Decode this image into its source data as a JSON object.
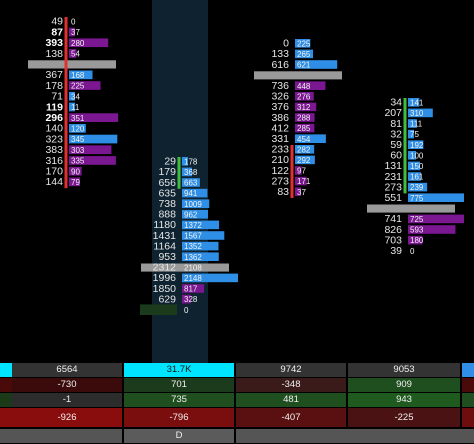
{
  "colors": {
    "background": "#000000",
    "highlight_column": "#0e2230",
    "bid": "#7a1791",
    "ask": "#2f8fe6",
    "poc_bar": "#9a9a9a",
    "buy_bar": "#3fbf3f",
    "sell_bar": "#e03030",
    "cyan": "#00e5ff",
    "pos_green": "#1f4f1f",
    "neg_red": "#6e0d0d",
    "neutral_gray": "#3a3a3a"
  },
  "chart_data": {
    "type": "footprint",
    "bars": [
      {
        "direction": "sell",
        "rows": [
          {
            "bid": "49",
            "ask": "0"
          },
          {
            "bid": "87",
            "ask": "37",
            "bold": true
          },
          {
            "bid": "393",
            "ask": "280",
            "bold": true
          },
          {
            "bid": "138",
            "ask": "54"
          },
          {
            "bid": "",
            "ask": "",
            "poc": true
          },
          {
            "bid": "367",
            "ask": "168"
          },
          {
            "bid": "178",
            "ask": "225"
          },
          {
            "bid": "71",
            "ask": "34"
          },
          {
            "bid": "119",
            "ask": "11",
            "bold": true
          },
          {
            "bid": "296",
            "ask": "351",
            "bold": true
          },
          {
            "bid": "140",
            "ask": "120"
          },
          {
            "bid": "323",
            "ask": "345"
          },
          {
            "bid": "383",
            "ask": "303"
          },
          {
            "bid": "316",
            "ask": "335"
          },
          {
            "bid": "170",
            "ask": "90"
          },
          {
            "bid": "144",
            "ask": "79"
          }
        ]
      },
      {
        "direction": "buy",
        "rows": [
          {
            "bid": "29",
            "ask": "178"
          },
          {
            "bid": "179",
            "ask": "368"
          },
          {
            "bid": "656",
            "ask": "663"
          },
          {
            "bid": "635",
            "ask": "941"
          },
          {
            "bid": "738",
            "ask": "1009"
          },
          {
            "bid": "888",
            "ask": "962"
          },
          {
            "bid": "1180",
            "ask": "1372"
          },
          {
            "bid": "1431",
            "ask": "1567"
          },
          {
            "bid": "1164",
            "ask": "1352"
          },
          {
            "bid": "953",
            "ask": "1362"
          },
          {
            "bid": "2312",
            "ask": "2108",
            "poc": true
          },
          {
            "bid": "1996",
            "ask": "2148"
          },
          {
            "bid": "1850",
            "ask": "817"
          },
          {
            "bid": "629",
            "ask": "328"
          },
          {
            "bid": "57",
            "ask": "0"
          }
        ]
      },
      {
        "direction": "sell",
        "rows": [
          {
            "bid": "0",
            "ask": "225"
          },
          {
            "bid": "133",
            "ask": "265"
          },
          {
            "bid": "616",
            "ask": "621"
          },
          {
            "bid": "",
            "ask": "",
            "poc": true
          },
          {
            "bid": "736",
            "ask": "448"
          },
          {
            "bid": "326",
            "ask": "276"
          },
          {
            "bid": "376",
            "ask": "312"
          },
          {
            "bid": "386",
            "ask": "288"
          },
          {
            "bid": "412",
            "ask": "285"
          },
          {
            "bid": "331",
            "ask": "454"
          },
          {
            "bid": "233",
            "ask": "282"
          },
          {
            "bid": "210",
            "ask": "292"
          },
          {
            "bid": "122",
            "ask": "97"
          },
          {
            "bid": "273",
            "ask": "171"
          },
          {
            "bid": "83",
            "ask": "37"
          }
        ]
      },
      {
        "direction": "buy",
        "rows": [
          {
            "bid": "34",
            "ask": "141"
          },
          {
            "bid": "207",
            "ask": "310"
          },
          {
            "bid": "81",
            "ask": "111"
          },
          {
            "bid": "32",
            "ask": "75"
          },
          {
            "bid": "59",
            "ask": "192"
          },
          {
            "bid": "60",
            "ask": "100"
          },
          {
            "bid": "131",
            "ask": "150"
          },
          {
            "bid": "231",
            "ask": "161"
          },
          {
            "bid": "273",
            "ask": "239"
          },
          {
            "bid": "551",
            "ask": "775"
          },
          {
            "bid": "",
            "ask": "",
            "poc": true
          },
          {
            "bid": "741",
            "ask": "725"
          },
          {
            "bid": "826",
            "ask": "593"
          },
          {
            "bid": "703",
            "ask": "180"
          },
          {
            "bid": "39",
            "ask": "0"
          }
        ]
      }
    ]
  },
  "summary": {
    "rows": [
      [
        "6564",
        "31.7K",
        "9742",
        "9053"
      ],
      [
        "-730",
        "701",
        "-348",
        "909"
      ],
      [
        "-1",
        "735",
        "481",
        "943"
      ],
      [
        "-926",
        "-796",
        "-407",
        "-225"
      ]
    ],
    "footer_label": "D"
  }
}
